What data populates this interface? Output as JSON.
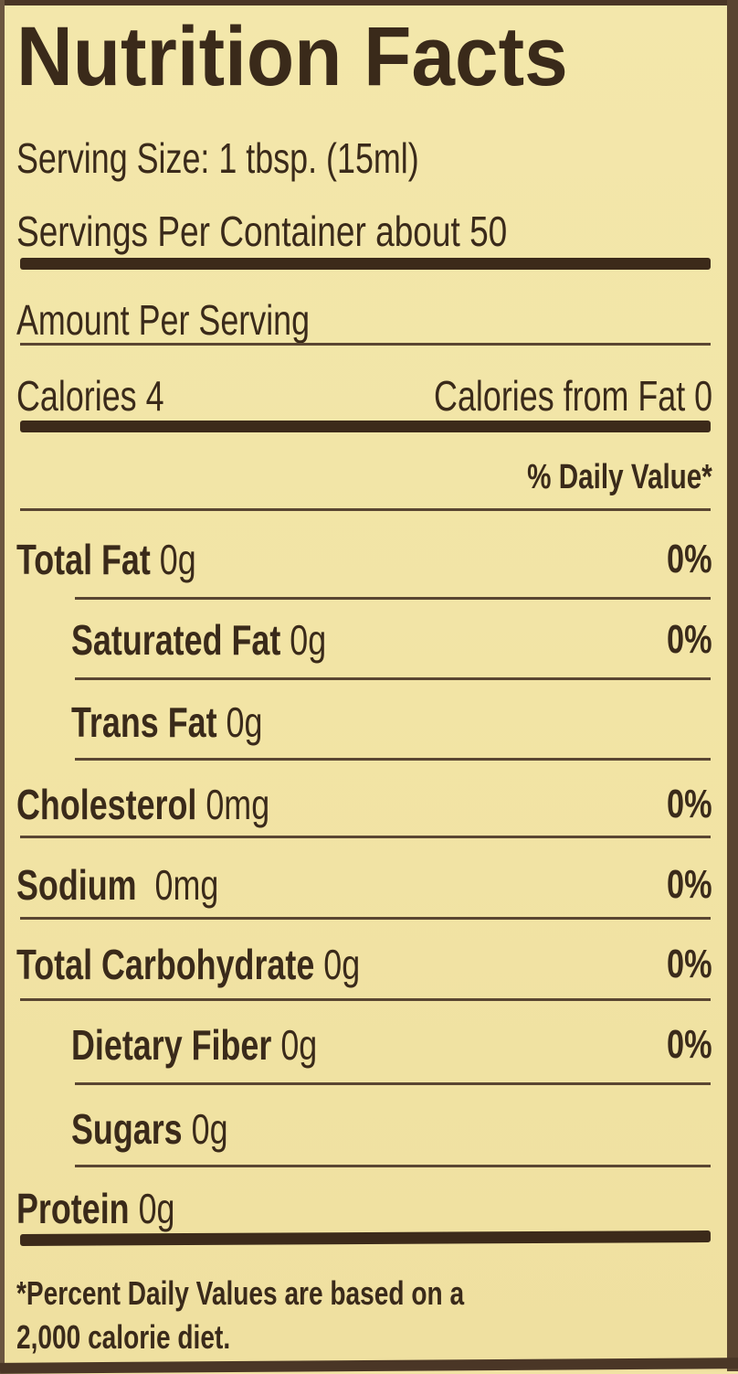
{
  "title": "Nutrition Facts",
  "serving_size": "Serving Size: 1 tbsp. (15ml)",
  "servings_per_container": "Servings Per Container about 50",
  "amount_per_serving": "Amount Per Serving",
  "calories": "Calories 4",
  "calories_from_fat": "Calories from Fat 0",
  "daily_value_header": "% Daily Value*",
  "nutrients": [
    {
      "name": "Total Fat",
      "amount": "0g",
      "dv": "0%"
    },
    {
      "name": "Saturated Fat",
      "amount": "0g",
      "dv": "0%"
    },
    {
      "name": "Trans Fat",
      "amount": "0g",
      "dv": ""
    },
    {
      "name": "Cholesterol",
      "amount": "0mg",
      "dv": "0%"
    },
    {
      "name": "Sodium",
      "amount": " 0mg",
      "dv": "0%"
    },
    {
      "name": "Total Carbohydrate",
      "amount": "0g",
      "dv": "0%"
    },
    {
      "name": "Dietary Fiber",
      "amount": "0g",
      "dv": "0%"
    },
    {
      "name": "Sugars",
      "amount": "0g",
      "dv": ""
    },
    {
      "name": "Protein",
      "amount": "0g",
      "dv": ""
    }
  ],
  "footnote_line1": "*Percent Daily Values are based on a",
  "footnote_line2": "2,000 calorie diet.",
  "colors": {
    "background": "#f1e3a4",
    "ink": "#3a2a1a"
  }
}
